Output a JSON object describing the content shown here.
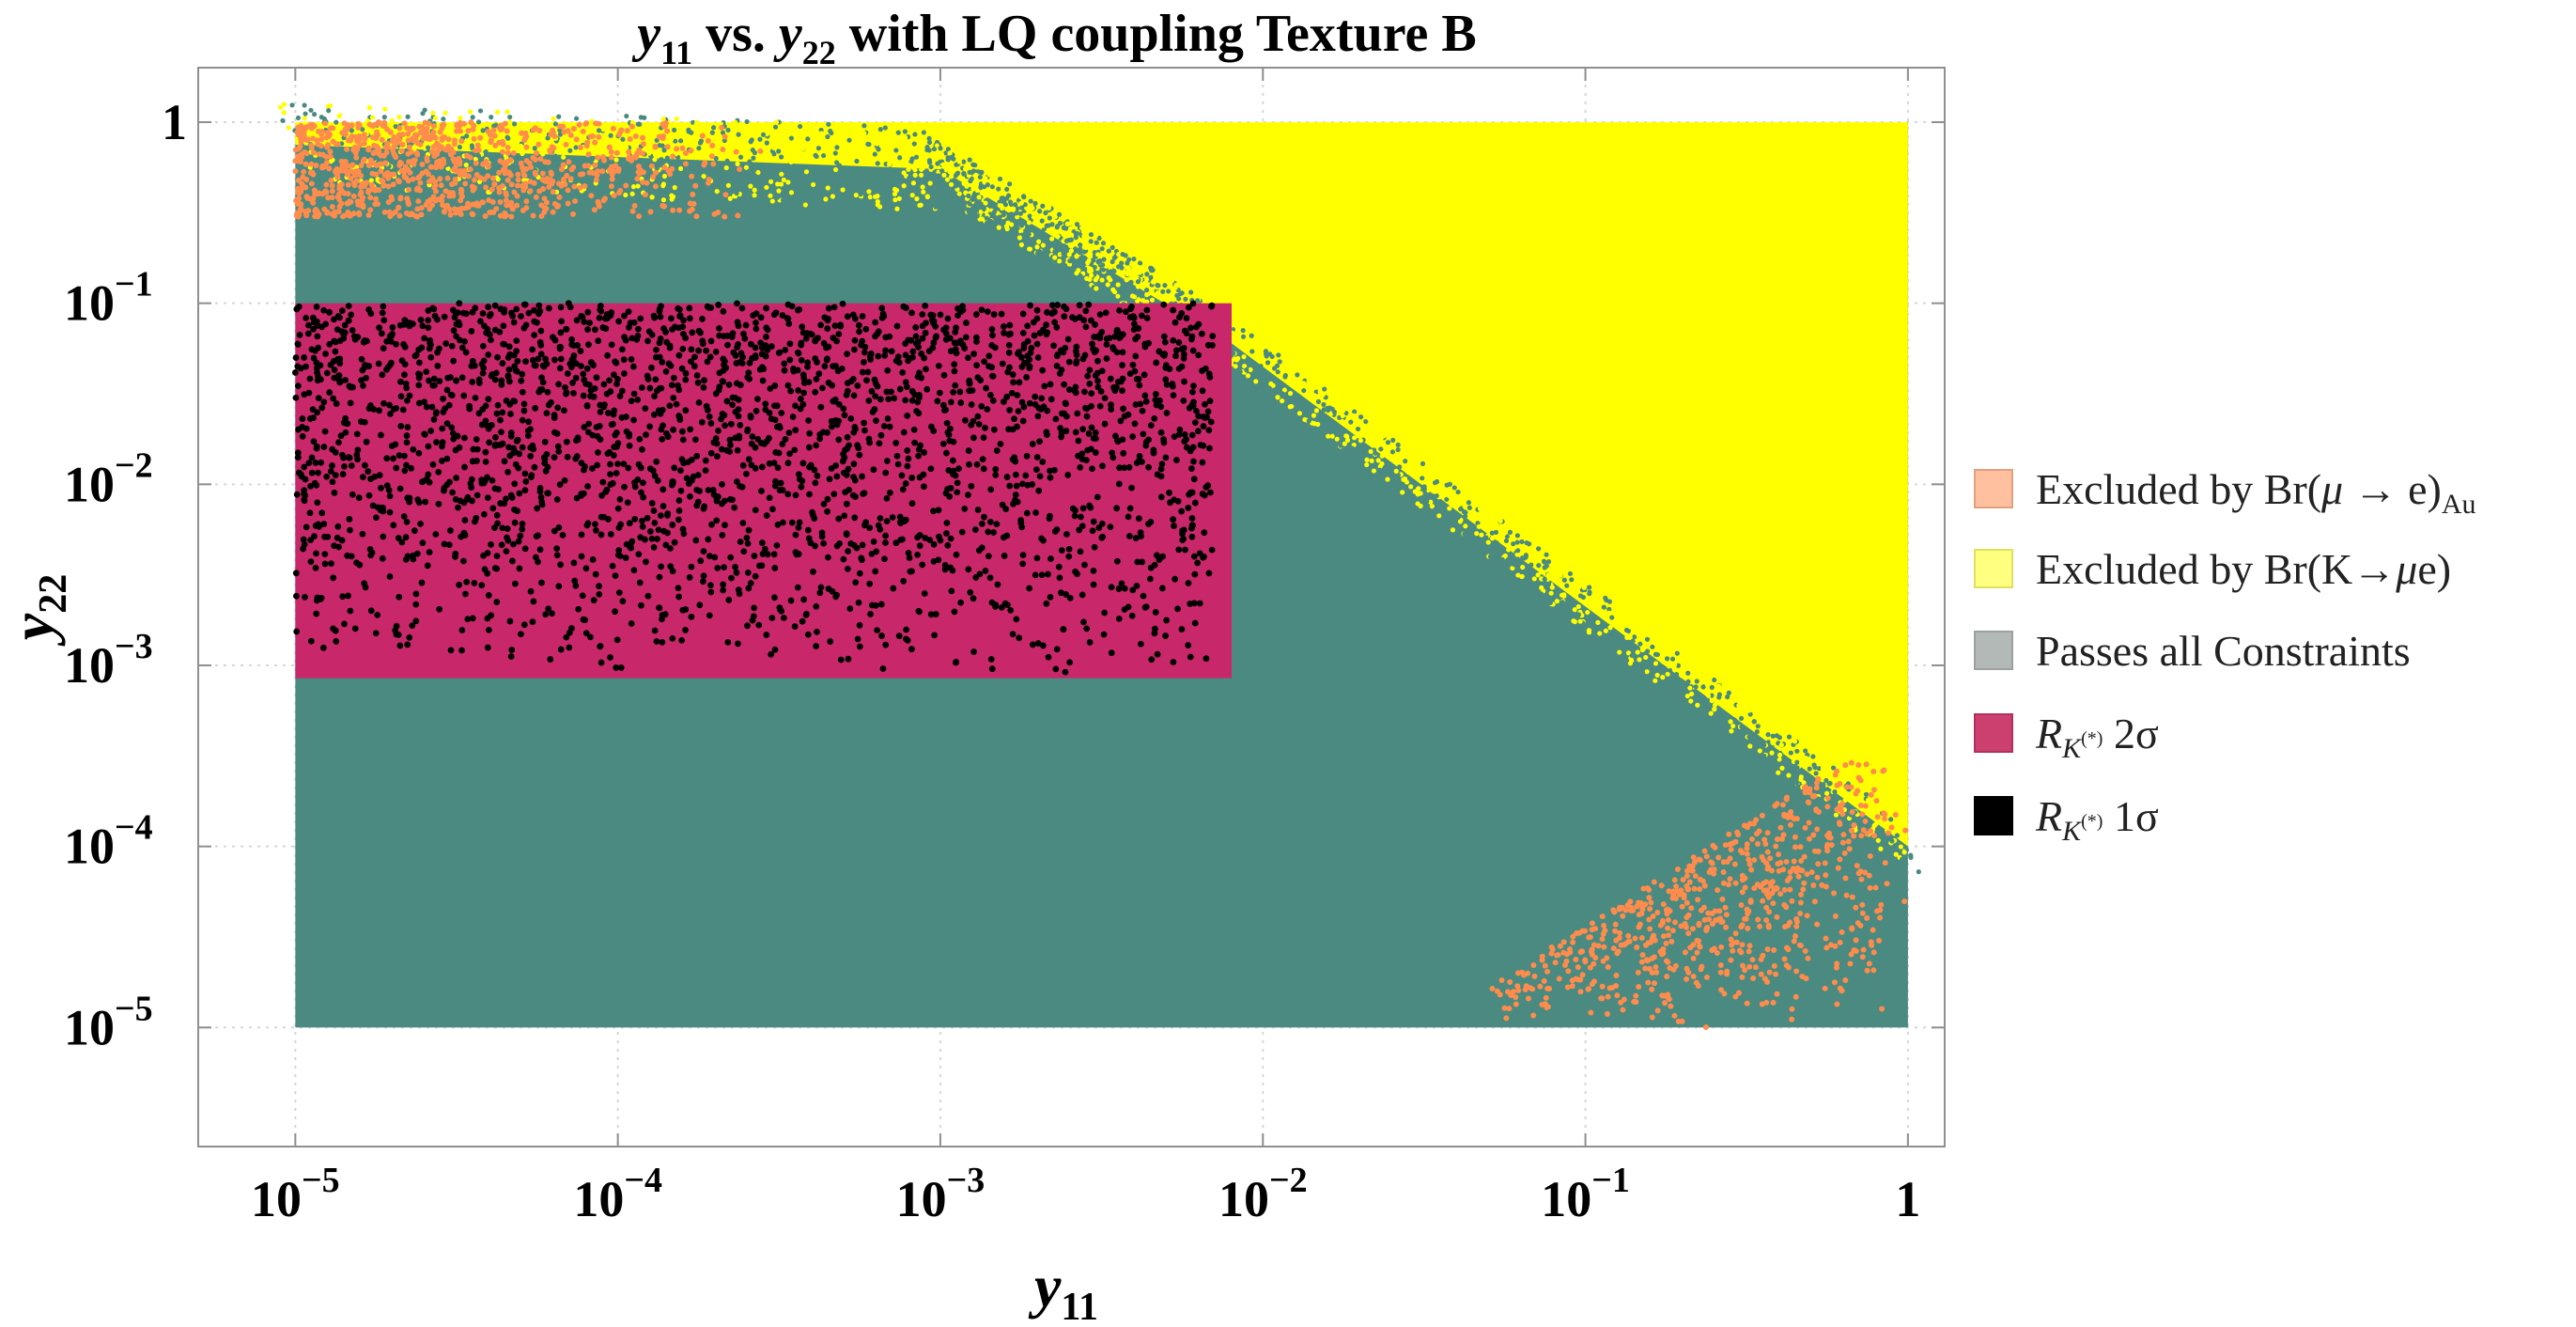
{
  "chart_data": {
    "type": "scatter",
    "title_parts": {
      "v1": "y",
      "s1": "11",
      "mid": " vs. ",
      "v2": "y",
      "s2": "22",
      "rest": " with LQ coupling Texture B"
    },
    "xlabel": {
      "var": "y",
      "sub": "11"
    },
    "ylabel": {
      "var": "y",
      "sub": "22"
    },
    "x_scale": "log",
    "y_scale": "log",
    "xlim": [
      5e-06,
      1.3
    ],
    "ylim": [
      2.2e-06,
      2.0
    ],
    "x_ticks": [
      {
        "value": 1e-05,
        "base": "10",
        "exp": "−5"
      },
      {
        "value": 0.0001,
        "base": "10",
        "exp": "−4"
      },
      {
        "value": 0.001,
        "base": "10",
        "exp": "−3"
      },
      {
        "value": 0.01,
        "base": "10",
        "exp": "−2"
      },
      {
        "value": 0.1,
        "base": "10",
        "exp": "−1"
      },
      {
        "value": 1,
        "base": "1",
        "exp": ""
      }
    ],
    "y_ticks": [
      {
        "value": 1e-05,
        "base": "10",
        "exp": "−5"
      },
      {
        "value": 0.0001,
        "base": "10",
        "exp": "−4"
      },
      {
        "value": 0.001,
        "base": "10",
        "exp": "−3"
      },
      {
        "value": 0.01,
        "base": "10",
        "exp": "−2"
      },
      {
        "value": 0.1,
        "base": "10",
        "exp": "−1"
      },
      {
        "value": 1,
        "base": "1",
        "exp": ""
      }
    ],
    "grid": true,
    "legend_position": "right",
    "series": [
      {
        "name": "Excluded by Br(μ → e)Au",
        "label_parts": {
          "main": "Excluded by Br(",
          "greek": "μ",
          "rest": " → e)",
          "sub": "Au"
        },
        "color": "#ff8c4c",
        "legend_color": "#ffc0a0",
        "regions": [
          {
            "shape": "band",
            "x": [
              1e-05,
              0.0003
            ],
            "y_log_range": [
              0.3,
              1.0
            ]
          },
          {
            "shape": "corner",
            "x": [
              0.05,
              1.0
            ],
            "y": [
              1e-05,
              0.0003
            ]
          }
        ]
      },
      {
        "name": "Excluded by Br(K→μe)",
        "label_parts": {
          "main": "Excluded by Br(K→",
          "greek": "μ",
          "rest": "e)",
          "sub": ""
        },
        "color": "#ffff00",
        "legend_color": "#ffff80",
        "boundary": {
          "description": "excluded above line",
          "points": [
            [
              1e-05,
              0.75
            ],
            [
              0.001,
              0.55
            ],
            [
              0.008,
              0.06
            ],
            [
              1.0,
              0.0001
            ]
          ]
        }
      },
      {
        "name": "Passes all Constraints",
        "label_parts": {
          "main": "Passes all Constraints",
          "greek": "",
          "rest": "",
          "sub": ""
        },
        "color": "#4a8a80",
        "legend_color": "#b2b9b6",
        "region": {
          "x": [
            1e-05,
            1.0
          ],
          "y": [
            1e-05,
            1.0
          ]
        }
      },
      {
        "name": "R_K(*) 2σ",
        "label_parts": {
          "R": "R",
          "K": "K",
          "star": "(*)",
          "sigma": " 2σ"
        },
        "color": "#c8286a",
        "legend_color": "#cc4070",
        "region": {
          "x": [
            1e-05,
            0.008
          ],
          "y": [
            0.00085,
            0.1
          ]
        }
      },
      {
        "name": "R_K(*) 1σ",
        "label_parts": {
          "R": "R",
          "K": "K",
          "star": "(*)",
          "sigma": " 1σ"
        },
        "color": "#000000",
        "legend_color": "#000000",
        "region": {
          "x": [
            1e-05,
            0.007
          ],
          "y": [
            0.0009,
            0.1
          ]
        }
      }
    ]
  }
}
